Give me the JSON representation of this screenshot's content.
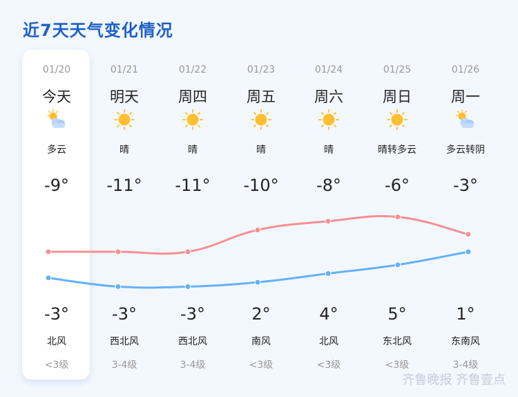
{
  "title": "近7天天气变化情况",
  "colors": {
    "title": "#1d5fc6",
    "high_line": "#f78f92",
    "low_line": "#64b1f9",
    "background": "#f3f8fe"
  },
  "days": [
    {
      "date": "01/20",
      "day": "今天",
      "icon": "partly-cloudy",
      "condition": "多云",
      "top_temp": "-9°",
      "bottom_temp": "-3°",
      "wind": "北风",
      "level": "<3级"
    },
    {
      "date": "01/21",
      "day": "明天",
      "icon": "sunny",
      "condition": "晴",
      "top_temp": "-11°",
      "bottom_temp": "-3°",
      "wind": "西北风",
      "level": "3-4级"
    },
    {
      "date": "01/22",
      "day": "周四",
      "icon": "sunny",
      "condition": "晴",
      "top_temp": "-11°",
      "bottom_temp": "-3°",
      "wind": "西北风",
      "level": "3-4级"
    },
    {
      "date": "01/23",
      "day": "周五",
      "icon": "sunny",
      "condition": "晴",
      "top_temp": "-10°",
      "bottom_temp": "2°",
      "wind": "南风",
      "level": "<3级"
    },
    {
      "date": "01/24",
      "day": "周六",
      "icon": "sunny",
      "condition": "晴",
      "top_temp": "-8°",
      "bottom_temp": "4°",
      "wind": "北风",
      "level": "<3级"
    },
    {
      "date": "01/25",
      "day": "周日",
      "icon": "sunny",
      "condition": "晴转多云",
      "top_temp": "-6°",
      "bottom_temp": "5°",
      "wind": "东北风",
      "level": "<3级"
    },
    {
      "date": "01/26",
      "day": "周一",
      "icon": "partly-cloudy",
      "condition": "多云转阴",
      "top_temp": "-3°",
      "bottom_temp": "1°",
      "wind": "东南风",
      "level": "3-4级"
    }
  ],
  "chart_data": {
    "type": "line",
    "x": [
      "01/20",
      "01/21",
      "01/22",
      "01/23",
      "01/24",
      "01/25",
      "01/26"
    ],
    "series": [
      {
        "color": "#f78f92",
        "values": [
          -3,
          -3,
          -3,
          2,
          4,
          5,
          1
        ]
      },
      {
        "color": "#64b1f9",
        "values": [
          -9,
          -11,
          -11,
          -10,
          -8,
          -6,
          -3
        ]
      }
    ]
  },
  "watermark": "齐鲁晚报 齐鲁壹点"
}
